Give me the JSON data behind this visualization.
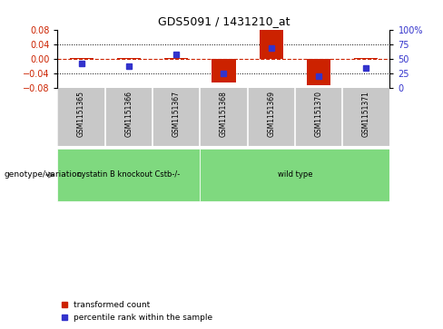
{
  "title": "GDS5091 / 1431210_at",
  "samples": [
    "GSM1151365",
    "GSM1151366",
    "GSM1151367",
    "GSM1151368",
    "GSM1151369",
    "GSM1151370",
    "GSM1151371"
  ],
  "transformed_count": [
    0.002,
    0.003,
    0.002,
    -0.065,
    0.082,
    -0.073,
    0.001
  ],
  "percentile_rank": [
    42,
    37,
    58,
    25,
    68,
    20,
    34
  ],
  "ylim_left": [
    -0.08,
    0.08
  ],
  "ylim_right": [
    0,
    100
  ],
  "yticks_left": [
    -0.08,
    -0.04,
    0,
    0.04,
    0.08
  ],
  "yticks_right": [
    0,
    25,
    50,
    75,
    100
  ],
  "bar_color": "#CC2200",
  "dot_color": "#3333CC",
  "bg_color": "white",
  "label_area_color": "#C8C8C8",
  "group_colors": [
    "#7FD97F",
    "#7FD97F"
  ],
  "legend_items": [
    "transformed count",
    "percentile rank within the sample"
  ],
  "legend_colors": [
    "#CC2200",
    "#3333CC"
  ],
  "genotype_label": "genotype/variation",
  "group_labels": [
    "cystatin B knockout Cstb-/-",
    "wild type"
  ],
  "group_starts": [
    0,
    3
  ],
  "group_ends": [
    2,
    6
  ],
  "bar_width": 0.5
}
